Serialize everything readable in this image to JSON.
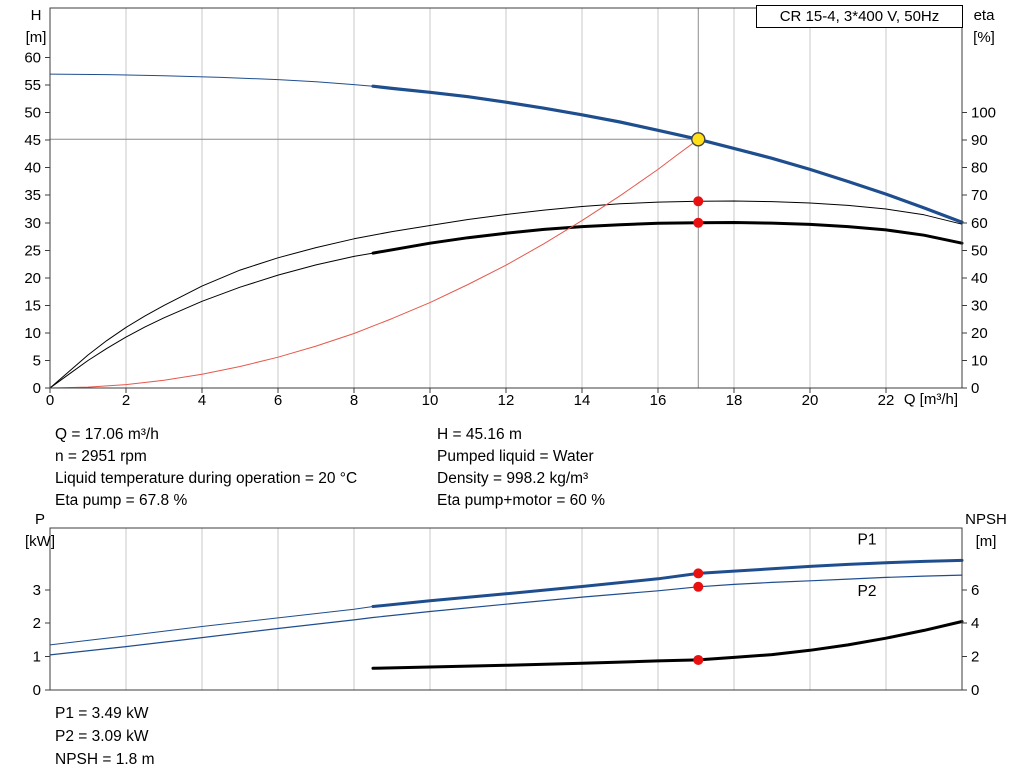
{
  "colors": {
    "blue": "#1f4e8f",
    "black": "#000000",
    "red": "#e4594d",
    "dot": "#e81010",
    "duty_fill": "#ffe01a",
    "duty_stroke": "#444444",
    "grid": "#c9c9c9",
    "frame": "#3c3c3c",
    "ref": "#8c8c8c"
  },
  "info_top": {
    "left": [
      "Q = 17.06 m³/h",
      "n = 2951 rpm",
      "Liquid temperature during operation = 20 °C",
      "Eta pump = 67.8 %"
    ],
    "right": [
      "H = 45.16 m",
      "Pumped liquid = Water",
      "Density = 998.2 kg/m³",
      "Eta pump+motor = 60 %"
    ]
  },
  "info_bottom": [
    "P1 = 3.49 kW",
    "P2 = 3.09 kW",
    "NPSH = 1.8 m"
  ],
  "chart_data": [
    {
      "id": "head",
      "type": "line",
      "title": "CR 15-4, 3*400 V, 50Hz",
      "x": {
        "label": "Q [m³/h]",
        "min": 0,
        "max": 24,
        "ticks": [
          0,
          2,
          4,
          6,
          8,
          10,
          12,
          14,
          16,
          18,
          20,
          22
        ],
        "grid": [
          2,
          4,
          6,
          8,
          10,
          12,
          14,
          16,
          18,
          20,
          22
        ]
      },
      "y_left": {
        "label": [
          "H",
          "[m]"
        ],
        "min": 0,
        "max": 69,
        "ticks": [
          0,
          5,
          10,
          15,
          20,
          25,
          30,
          35,
          40,
          45,
          50,
          55,
          60
        ]
      },
      "y_right": {
        "label": [
          "eta",
          "[%]"
        ],
        "min": 0,
        "max": 138,
        "ticks": [
          0,
          10,
          20,
          30,
          40,
          50,
          60,
          70,
          80,
          90,
          100
        ]
      },
      "ref": {
        "vx": 17.06,
        "hy": 45.16
      },
      "series": [
        {
          "name": "h-curve-thin",
          "axis": "left",
          "color": "blue",
          "width": 1,
          "points": [
            [
              0,
              57
            ],
            [
              1.5,
              56.9
            ],
            [
              3,
              56.7
            ],
            [
              4.5,
              56.4
            ],
            [
              6,
              56.0
            ],
            [
              7,
              55.6
            ],
            [
              8,
              55.1
            ],
            [
              8.5,
              54.8
            ]
          ]
        },
        {
          "name": "h-curve",
          "axis": "left",
          "color": "blue",
          "width": 3.2,
          "points": [
            [
              8.5,
              54.8
            ],
            [
              9,
              54.4
            ],
            [
              10,
              53.7
            ],
            [
              11,
              52.9
            ],
            [
              12,
              51.9
            ],
            [
              13,
              50.8
            ],
            [
              14,
              49.6
            ],
            [
              15,
              48.3
            ],
            [
              16,
              46.8
            ],
            [
              17.06,
              45.16
            ],
            [
              18,
              43.5
            ],
            [
              19,
              41.7
            ],
            [
              20,
              39.7
            ],
            [
              21,
              37.5
            ],
            [
              22,
              35.2
            ],
            [
              23,
              32.7
            ],
            [
              24,
              30.1
            ]
          ]
        },
        {
          "name": "eta-pump",
          "axis": "right",
          "color": "black",
          "width": 1,
          "points": [
            [
              0,
              0
            ],
            [
              0.5,
              6
            ],
            [
              1,
              12
            ],
            [
              1.5,
              17.3
            ],
            [
              2,
              22
            ],
            [
              2.5,
              26.2
            ],
            [
              3,
              30
            ],
            [
              4,
              37
            ],
            [
              5,
              42.8
            ],
            [
              6,
              47.3
            ],
            [
              7,
              51
            ],
            [
              8,
              54.2
            ],
            [
              9,
              56.8
            ],
            [
              10,
              59
            ],
            [
              11,
              61.2
            ],
            [
              12,
              63
            ],
            [
              13,
              64.6
            ],
            [
              14,
              65.9
            ],
            [
              15,
              66.9
            ],
            [
              16,
              67.5
            ],
            [
              17.06,
              67.8
            ],
            [
              18,
              67.9
            ],
            [
              19,
              67.7
            ],
            [
              20,
              67.2
            ],
            [
              21,
              66.3
            ],
            [
              22,
              65
            ],
            [
              23,
              62.9
            ],
            [
              24,
              59.5
            ]
          ]
        },
        {
          "name": "eta-pump-motor-thin",
          "axis": "right",
          "color": "black",
          "width": 1,
          "points": [
            [
              0,
              0
            ],
            [
              0.5,
              5
            ],
            [
              1,
              10
            ],
            [
              1.5,
              14.4
            ],
            [
              2,
              18.5
            ],
            [
              2.5,
              22.2
            ],
            [
              3,
              25.5
            ],
            [
              4,
              31.5
            ],
            [
              5,
              36.6
            ],
            [
              6,
              41
            ],
            [
              7,
              44.7
            ],
            [
              8,
              47.8
            ],
            [
              8.5,
              49
            ]
          ]
        },
        {
          "name": "eta-pump-motor",
          "axis": "right",
          "color": "black",
          "width": 3,
          "points": [
            [
              8.5,
              49
            ],
            [
              10,
              52.6
            ],
            [
              11,
              54.6
            ],
            [
              12,
              56.2
            ],
            [
              13,
              57.6
            ],
            [
              14,
              58.6
            ],
            [
              15,
              59.3
            ],
            [
              16,
              59.8
            ],
            [
              17.06,
              60
            ],
            [
              18,
              60.1
            ],
            [
              19,
              59.9
            ],
            [
              20,
              59.4
            ],
            [
              21,
              58.6
            ],
            [
              22,
              57.4
            ],
            [
              23,
              55.5
            ],
            [
              24,
              52.6
            ]
          ]
        },
        {
          "name": "system-curve",
          "axis": "left",
          "color": "red",
          "width": 1,
          "points": [
            [
              0,
              0
            ],
            [
              1,
              0.16
            ],
            [
              2,
              0.62
            ],
            [
              3,
              1.4
            ],
            [
              4,
              2.5
            ],
            [
              5,
              3.9
            ],
            [
              6,
              5.6
            ],
            [
              7,
              7.6
            ],
            [
              8,
              9.9
            ],
            [
              9,
              12.6
            ],
            [
              10,
              15.5
            ],
            [
              11,
              18.8
            ],
            [
              12,
              22.3
            ],
            [
              13,
              26.2
            ],
            [
              14,
              30.4
            ],
            [
              15,
              34.9
            ],
            [
              16,
              39.7
            ],
            [
              16.5,
              42.3
            ],
            [
              17.06,
              45.16
            ]
          ]
        }
      ],
      "markers": [
        {
          "x": 17.06,
          "y": 45.16,
          "axis": "left",
          "kind": "duty"
        },
        {
          "x": 17.06,
          "y": 67.8,
          "axis": "right",
          "kind": "dot"
        },
        {
          "x": 17.06,
          "y": 60,
          "axis": "right",
          "kind": "dot"
        }
      ]
    },
    {
      "id": "power",
      "type": "line",
      "x": {
        "min": 0,
        "max": 24,
        "ticks": [],
        "grid": [
          2,
          4,
          6,
          8,
          10,
          12,
          14,
          16,
          18,
          20,
          22
        ]
      },
      "y_left": {
        "label": [
          "P",
          "[kW]"
        ],
        "min": 0,
        "max": 4.85,
        "ticks": [
          0,
          1,
          2,
          3
        ]
      },
      "y_right": {
        "label": [
          "NPSH",
          "[m]"
        ],
        "min": 0,
        "max": 9.7,
        "ticks": [
          0,
          2,
          4,
          6
        ]
      },
      "series": [
        {
          "name": "p1-thin",
          "axis": "left",
          "color": "blue",
          "width": 1,
          "points": [
            [
              0,
              1.35
            ],
            [
              2,
              1.62
            ],
            [
              4,
              1.9
            ],
            [
              6,
              2.16
            ],
            [
              8,
              2.42
            ],
            [
              8.5,
              2.5
            ]
          ]
        },
        {
          "name": "p1",
          "axis": "left",
          "color": "blue",
          "width": 3,
          "points": [
            [
              8.5,
              2.5
            ],
            [
              10,
              2.67
            ],
            [
              12,
              2.88
            ],
            [
              14,
              3.1
            ],
            [
              16,
              3.33
            ],
            [
              17.06,
              3.49
            ],
            [
              18,
              3.56
            ],
            [
              19,
              3.63
            ],
            [
              20,
              3.7
            ],
            [
              21,
              3.76
            ],
            [
              22,
              3.81
            ],
            [
              23,
              3.85
            ],
            [
              24,
              3.88
            ]
          ]
        },
        {
          "name": "p2",
          "axis": "left",
          "color": "blue",
          "width": 1.2,
          "points": [
            [
              0,
              1.05
            ],
            [
              2,
              1.3
            ],
            [
              4,
              1.57
            ],
            [
              6,
              1.84
            ],
            [
              8,
              2.1
            ],
            [
              8.5,
              2.17
            ],
            [
              10,
              2.35
            ],
            [
              12,
              2.57
            ],
            [
              14,
              2.78
            ],
            [
              16,
              2.97
            ],
            [
              17.06,
              3.09
            ],
            [
              18,
              3.16
            ],
            [
              19,
              3.22
            ],
            [
              20,
              3.27
            ],
            [
              21,
              3.32
            ],
            [
              22,
              3.37
            ],
            [
              23,
              3.41
            ],
            [
              24,
              3.44
            ]
          ]
        },
        {
          "name": "npsh",
          "axis": "right",
          "color": "black",
          "width": 3,
          "points": [
            [
              8.5,
              1.3
            ],
            [
              10,
              1.38
            ],
            [
              12,
              1.48
            ],
            [
              14,
              1.6
            ],
            [
              15,
              1.67
            ],
            [
              16,
              1.74
            ],
            [
              17.06,
              1.8
            ],
            [
              18,
              1.95
            ],
            [
              19,
              2.12
            ],
            [
              20,
              2.38
            ],
            [
              21,
              2.7
            ],
            [
              22,
              3.1
            ],
            [
              23,
              3.57
            ],
            [
              24,
              4.1
            ]
          ]
        }
      ],
      "markers": [
        {
          "x": 17.06,
          "y": 3.49,
          "axis": "left",
          "kind": "dot"
        },
        {
          "x": 17.06,
          "y": 3.09,
          "axis": "left",
          "kind": "dot"
        },
        {
          "x": 17.06,
          "y": 1.8,
          "axis": "right",
          "kind": "dot"
        }
      ],
      "annotations": [
        {
          "text": "P1",
          "x": 21.5,
          "y": 4.35,
          "axis": "left",
          "color": "blue"
        },
        {
          "text": "P2",
          "x": 21.5,
          "y": 2.82,
          "axis": "left",
          "color": "blue"
        }
      ]
    }
  ]
}
